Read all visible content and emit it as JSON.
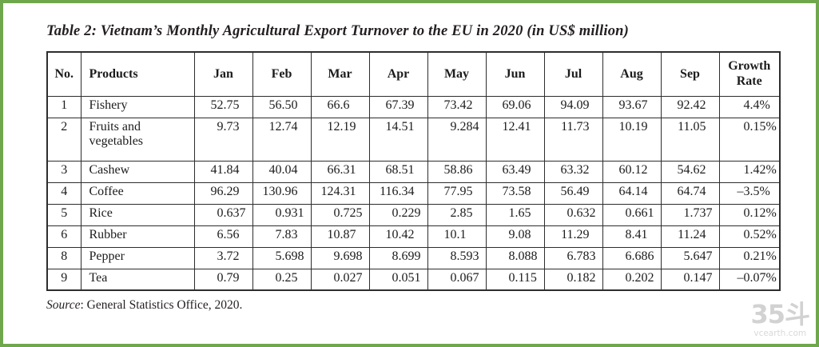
{
  "title": "Table 2: Vietnam’s Monthly Agricultural Export Turnover to the EU in 2020 (in US$ million)",
  "chart_data": {
    "type": "table",
    "title": "Table 2: Vietnam’s Monthly Agricultural Export Turnover to the EU in 2020 (in US$ million)",
    "columns": [
      "No.",
      "Products",
      "Jan",
      "Feb",
      "Mar",
      "Apr",
      "May",
      "Jun",
      "Jul",
      "Aug",
      "Sep",
      "Growth Rate"
    ],
    "rows": [
      {
        "no": "1",
        "product": "Fishery",
        "values": [
          "52.75",
          "56.50",
          "66.6",
          "67.39",
          "73.42",
          "69.06",
          "94.09",
          "93.67",
          "92.42"
        ],
        "growth": "4.4%"
      },
      {
        "no": "2",
        "product": "Fruits and vegetables",
        "values": [
          "9.73",
          "12.74",
          "12.19",
          "14.51",
          "9.284",
          "12.41",
          "11.73",
          "10.19",
          "11.05"
        ],
        "growth": "0.15%"
      },
      {
        "no": "3",
        "product": "Cashew",
        "values": [
          "41.84",
          "40.04",
          "66.31",
          "68.51",
          "58.86",
          "63.49",
          "63.32",
          "60.12",
          "54.62"
        ],
        "growth": "1.42%"
      },
      {
        "no": "4",
        "product": "Coffee",
        "values": [
          "96.29",
          "130.96",
          "124.31",
          "116.34",
          "77.95",
          "73.58",
          "56.49",
          "64.14",
          "64.74"
        ],
        "growth": "–3.5%"
      },
      {
        "no": "5",
        "product": "Rice",
        "values": [
          "0.637",
          "0.931",
          "0.725",
          "0.229",
          "2.85",
          "1.65",
          "0.632",
          "0.661",
          "1.737"
        ],
        "growth": "0.12%"
      },
      {
        "no": "6",
        "product": "Rubber",
        "values": [
          "6.56",
          "7.83",
          "10.87",
          "10.42",
          "10.1",
          "9.08",
          "11.29",
          "8.41",
          "11.24"
        ],
        "growth": "0.52%"
      },
      {
        "no": "8",
        "product": "Pepper",
        "values": [
          "3.72",
          "5.698",
          "9.698",
          "8.699",
          "8.593",
          "8.088",
          "6.783",
          "6.686",
          "5.647"
        ],
        "growth": "0.21%"
      },
      {
        "no": "9",
        "product": "Tea",
        "values": [
          "0.79",
          "0.25",
          "0.027",
          "0.051",
          "0.067",
          "0.115",
          "0.182",
          "0.202",
          "0.147"
        ],
        "growth": "–0.07%"
      }
    ]
  },
  "source": {
    "label": "Source",
    "text": ": General Statistics Office, 2020."
  },
  "watermark": {
    "logo": "35斗",
    "site": "vcearth.com"
  },
  "colors": {
    "frame_green": "#6FA74C",
    "table_border": "#2d2d2d",
    "text": "#231f20",
    "watermark_gray": "#d2d2d2"
  }
}
